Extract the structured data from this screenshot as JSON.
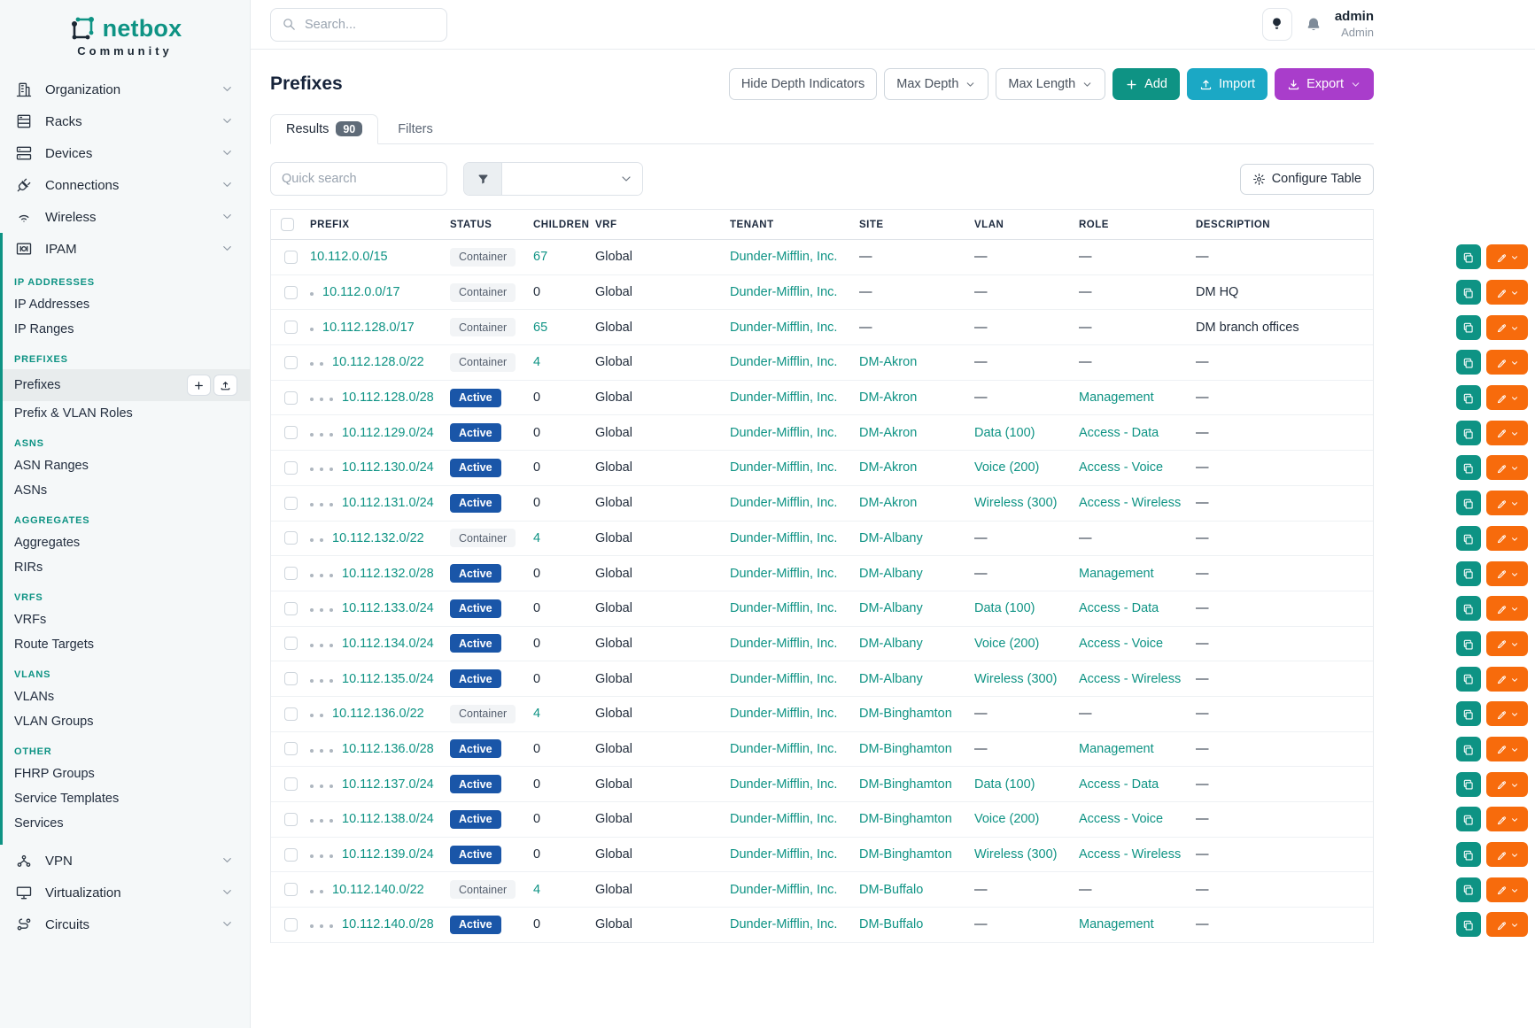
{
  "brand": {
    "name": "netbox",
    "subtitle": "Community"
  },
  "topbar": {
    "search_placeholder": "Search...",
    "username": "admin",
    "role": "Admin"
  },
  "sidebar": {
    "top_items": [
      {
        "label": "Organization",
        "icon": "building"
      },
      {
        "label": "Racks",
        "icon": "rack"
      },
      {
        "label": "Devices",
        "icon": "server"
      },
      {
        "label": "Connections",
        "icon": "plug"
      },
      {
        "label": "Wireless",
        "icon": "wifi"
      }
    ],
    "ipam_label": "IPAM",
    "ipam_icon": "ipam",
    "ipam_sections": [
      {
        "heading": "IP ADDRESSES",
        "items": [
          {
            "label": "IP Addresses"
          },
          {
            "label": "IP Ranges"
          }
        ]
      },
      {
        "heading": "PREFIXES",
        "items": [
          {
            "label": "Prefixes",
            "active": true,
            "actions": true
          },
          {
            "label": "Prefix & VLAN Roles"
          }
        ]
      },
      {
        "heading": "ASNS",
        "items": [
          {
            "label": "ASN Ranges"
          },
          {
            "label": "ASNs"
          }
        ]
      },
      {
        "heading": "AGGREGATES",
        "items": [
          {
            "label": "Aggregates"
          },
          {
            "label": "RIRs"
          }
        ]
      },
      {
        "heading": "VRFS",
        "items": [
          {
            "label": "VRFs"
          },
          {
            "label": "Route Targets"
          }
        ]
      },
      {
        "heading": "VLANS",
        "items": [
          {
            "label": "VLANs"
          },
          {
            "label": "VLAN Groups"
          }
        ]
      },
      {
        "heading": "OTHER",
        "items": [
          {
            "label": "FHRP Groups"
          },
          {
            "label": "Service Templates"
          },
          {
            "label": "Services"
          }
        ]
      }
    ],
    "bottom_items": [
      {
        "label": "VPN",
        "icon": "vpn"
      },
      {
        "label": "Virtualization",
        "icon": "monitor"
      },
      {
        "label": "Circuits",
        "icon": "route"
      }
    ]
  },
  "page": {
    "title": "Prefixes",
    "hide_depth_label": "Hide Depth Indicators",
    "max_depth_label": "Max Depth",
    "max_length_label": "Max Length",
    "add_label": "Add",
    "import_label": "Import",
    "export_label": "Export"
  },
  "tabs": {
    "results_label": "Results",
    "results_count": "90",
    "filters_label": "Filters"
  },
  "toolbar": {
    "quick_search_placeholder": "Quick search",
    "configure_label": "Configure Table"
  },
  "table": {
    "columns": [
      "PREFIX",
      "STATUS",
      "CHILDREN",
      "VRF",
      "TENANT",
      "SITE",
      "VLAN",
      "ROLE",
      "DESCRIPTION"
    ],
    "rows": [
      {
        "depth": 0,
        "prefix": "10.112.0.0/15",
        "status": "Container",
        "children": "67",
        "vrf": "Global",
        "tenant": "Dunder-Mifflin, Inc.",
        "site": "—",
        "vlan": "—",
        "role": "—",
        "description": "—"
      },
      {
        "depth": 1,
        "prefix": "10.112.0.0/17",
        "status": "Container",
        "children": "0",
        "vrf": "Global",
        "tenant": "Dunder-Mifflin, Inc.",
        "site": "—",
        "vlan": "—",
        "role": "—",
        "description": "DM HQ"
      },
      {
        "depth": 1,
        "prefix": "10.112.128.0/17",
        "status": "Container",
        "children": "65",
        "vrf": "Global",
        "tenant": "Dunder-Mifflin, Inc.",
        "site": "—",
        "vlan": "—",
        "role": "—",
        "description": "DM branch offices"
      },
      {
        "depth": 2,
        "prefix": "10.112.128.0/22",
        "status": "Container",
        "children": "4",
        "vrf": "Global",
        "tenant": "Dunder-Mifflin, Inc.",
        "site": "DM-Akron",
        "vlan": "—",
        "role": "—",
        "description": "—"
      },
      {
        "depth": 3,
        "prefix": "10.112.128.0/28",
        "status": "Active",
        "children": "0",
        "vrf": "Global",
        "tenant": "Dunder-Mifflin, Inc.",
        "site": "DM-Akron",
        "vlan": "—",
        "role": "Management",
        "description": "—"
      },
      {
        "depth": 3,
        "prefix": "10.112.129.0/24",
        "status": "Active",
        "children": "0",
        "vrf": "Global",
        "tenant": "Dunder-Mifflin, Inc.",
        "site": "DM-Akron",
        "vlan": "Data (100)",
        "role": "Access - Data",
        "description": "—"
      },
      {
        "depth": 3,
        "prefix": "10.112.130.0/24",
        "status": "Active",
        "children": "0",
        "vrf": "Global",
        "tenant": "Dunder-Mifflin, Inc.",
        "site": "DM-Akron",
        "vlan": "Voice (200)",
        "role": "Access - Voice",
        "description": "—"
      },
      {
        "depth": 3,
        "prefix": "10.112.131.0/24",
        "status": "Active",
        "children": "0",
        "vrf": "Global",
        "tenant": "Dunder-Mifflin, Inc.",
        "site": "DM-Akron",
        "vlan": "Wireless (300)",
        "role": "Access - Wireless",
        "description": "—"
      },
      {
        "depth": 2,
        "prefix": "10.112.132.0/22",
        "status": "Container",
        "children": "4",
        "vrf": "Global",
        "tenant": "Dunder-Mifflin, Inc.",
        "site": "DM-Albany",
        "vlan": "—",
        "role": "—",
        "description": "—"
      },
      {
        "depth": 3,
        "prefix": "10.112.132.0/28",
        "status": "Active",
        "children": "0",
        "vrf": "Global",
        "tenant": "Dunder-Mifflin, Inc.",
        "site": "DM-Albany",
        "vlan": "—",
        "role": "Management",
        "description": "—"
      },
      {
        "depth": 3,
        "prefix": "10.112.133.0/24",
        "status": "Active",
        "children": "0",
        "vrf": "Global",
        "tenant": "Dunder-Mifflin, Inc.",
        "site": "DM-Albany",
        "vlan": "Data (100)",
        "role": "Access - Data",
        "description": "—"
      },
      {
        "depth": 3,
        "prefix": "10.112.134.0/24",
        "status": "Active",
        "children": "0",
        "vrf": "Global",
        "tenant": "Dunder-Mifflin, Inc.",
        "site": "DM-Albany",
        "vlan": "Voice (200)",
        "role": "Access - Voice",
        "description": "—"
      },
      {
        "depth": 3,
        "prefix": "10.112.135.0/24",
        "status": "Active",
        "children": "0",
        "vrf": "Global",
        "tenant": "Dunder-Mifflin, Inc.",
        "site": "DM-Albany",
        "vlan": "Wireless (300)",
        "role": "Access - Wireless",
        "description": "—"
      },
      {
        "depth": 2,
        "prefix": "10.112.136.0/22",
        "status": "Container",
        "children": "4",
        "vrf": "Global",
        "tenant": "Dunder-Mifflin, Inc.",
        "site": "DM-Binghamton",
        "vlan": "—",
        "role": "—",
        "description": "—"
      },
      {
        "depth": 3,
        "prefix": "10.112.136.0/28",
        "status": "Active",
        "children": "0",
        "vrf": "Global",
        "tenant": "Dunder-Mifflin, Inc.",
        "site": "DM-Binghamton",
        "vlan": "—",
        "role": "Management",
        "description": "—"
      },
      {
        "depth": 3,
        "prefix": "10.112.137.0/24",
        "status": "Active",
        "children": "0",
        "vrf": "Global",
        "tenant": "Dunder-Mifflin, Inc.",
        "site": "DM-Binghamton",
        "vlan": "Data (100)",
        "role": "Access - Data",
        "description": "—"
      },
      {
        "depth": 3,
        "prefix": "10.112.138.0/24",
        "status": "Active",
        "children": "0",
        "vrf": "Global",
        "tenant": "Dunder-Mifflin, Inc.",
        "site": "DM-Binghamton",
        "vlan": "Voice (200)",
        "role": "Access - Voice",
        "description": "—"
      },
      {
        "depth": 3,
        "prefix": "10.112.139.0/24",
        "status": "Active",
        "children": "0",
        "vrf": "Global",
        "tenant": "Dunder-Mifflin, Inc.",
        "site": "DM-Binghamton",
        "vlan": "Wireless (300)",
        "role": "Access - Wireless",
        "description": "—"
      },
      {
        "depth": 2,
        "prefix": "10.112.140.0/22",
        "status": "Container",
        "children": "4",
        "vrf": "Global",
        "tenant": "Dunder-Mifflin, Inc.",
        "site": "DM-Buffalo",
        "vlan": "—",
        "role": "—",
        "description": "—"
      },
      {
        "depth": 3,
        "prefix": "10.112.140.0/28",
        "status": "Active",
        "children": "0",
        "vrf": "Global",
        "tenant": "Dunder-Mifflin, Inc.",
        "site": "DM-Buffalo",
        "vlan": "—",
        "role": "Management",
        "description": "—"
      }
    ]
  },
  "colors": {
    "accent_teal": "#0e9384",
    "active_badge_blue": "#1a56a8",
    "container_badge_bg": "#f2f4f6",
    "import_cyan": "#1ba8c5",
    "export_purple": "#a93dcb",
    "edit_orange": "#f76b0c",
    "sidebar_bg": "#f5f8f9"
  }
}
